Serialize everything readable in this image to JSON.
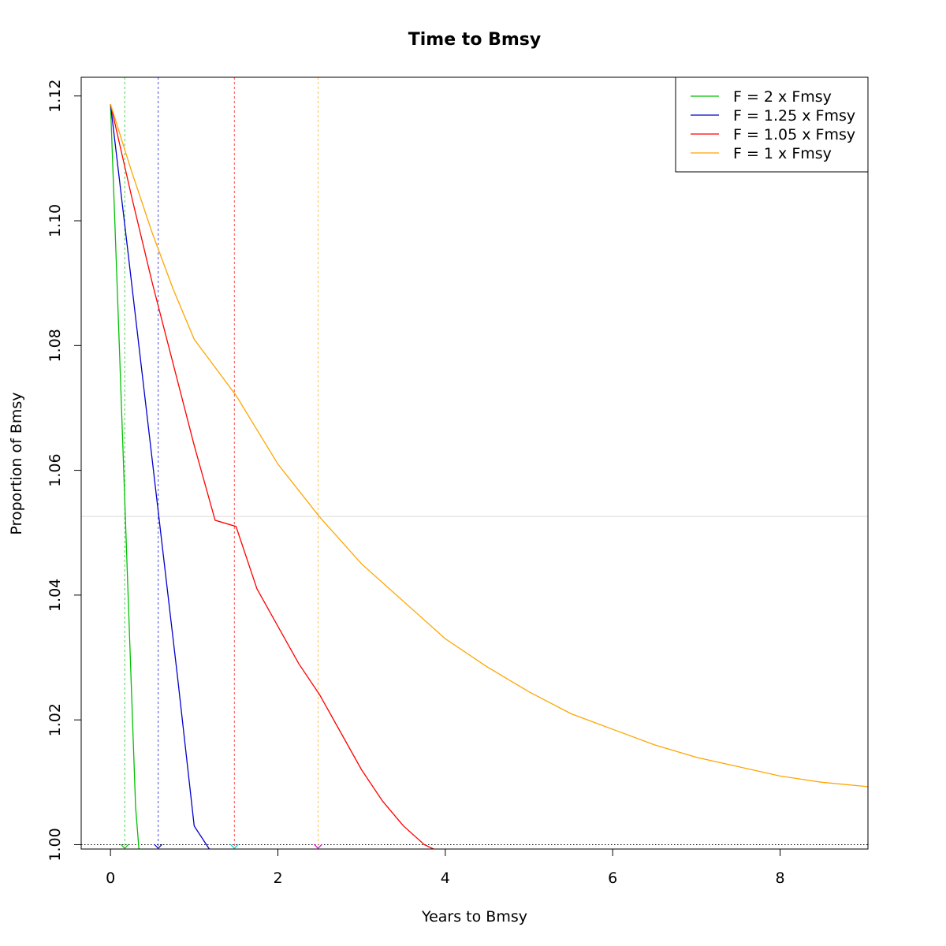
{
  "chart_data": {
    "type": "line",
    "title": "Time to Bmsy",
    "xlabel": "Years to Bmsy",
    "ylabel": "Proportion of Bmsy",
    "xlim": [
      -0.35,
      9.05
    ],
    "ylim": [
      0.9993,
      1.123
    ],
    "x_ticks": [
      0,
      2,
      4,
      6,
      8
    ],
    "y_ticks": [
      1.0,
      1.02,
      1.04,
      1.06,
      1.08,
      1.1,
      1.12
    ],
    "y_tick_labels": [
      "1.00",
      "1.02",
      "1.04",
      "1.06",
      "1.08",
      "1.10",
      "1.12"
    ],
    "grid": false,
    "legend_position": "top-right",
    "series": [
      {
        "name": "F = 2 x Fmsy",
        "color": "#00c000",
        "x": [
          0,
          0.05,
          0.1,
          0.15,
          0.2,
          0.25,
          0.3,
          0.34
        ],
        "y": [
          1.1187,
          1.1005,
          1.082,
          1.063,
          1.044,
          1.025,
          1.006,
          0.9993
        ]
      },
      {
        "name": "F = 1.25 x Fmsy",
        "color": "#0000cc",
        "x": [
          0,
          0.2,
          0.4,
          0.6,
          0.8,
          1.0,
          1.18
        ],
        "y": [
          1.1187,
          1.096,
          1.073,
          1.05,
          1.027,
          1.003,
          0.9993
        ]
      },
      {
        "name": "F = 1.05 x Fmsy",
        "color": "#ff0000",
        "x": [
          0,
          0.25,
          0.5,
          0.75,
          1.0,
          1.25,
          1.5,
          1.75,
          2.0,
          2.25,
          2.5,
          2.75,
          3.0,
          3.25,
          3.5,
          3.75,
          3.86
        ],
        "y": [
          1.1187,
          1.104,
          1.09,
          1.077,
          1.064,
          1.052,
          1.051,
          1.041,
          1.035,
          1.029,
          1.024,
          1.018,
          1.012,
          1.007,
          1.003,
          1.0,
          0.9993
        ]
      },
      {
        "name": "F = 1 x Fmsy",
        "color": "#ffa500",
        "x": [
          0,
          0.25,
          0.5,
          0.75,
          1.0,
          1.5,
          2.0,
          2.5,
          3.0,
          3.5,
          4.0,
          4.5,
          5.0,
          5.5,
          6.0,
          6.5,
          7.0,
          7.5,
          8.0,
          8.5,
          9.05
        ],
        "y": [
          1.1187,
          1.108,
          1.098,
          1.089,
          1.081,
          1.072,
          1.061,
          1.0525,
          1.045,
          1.039,
          1.033,
          1.0285,
          1.0245,
          1.021,
          1.0185,
          1.016,
          1.014,
          1.0125,
          1.011,
          1.01,
          1.0093
        ]
      }
    ],
    "vertical_reference_lines": [
      {
        "x": 0.17,
        "color": "#00c000"
      },
      {
        "x": 0.57,
        "color": "#0000cc"
      },
      {
        "x": 1.48,
        "color": "#ff0000"
      },
      {
        "x": 2.48,
        "color": "#ffa500"
      }
    ],
    "arrow_markers": [
      {
        "x": 0.17,
        "color": "#00c000"
      },
      {
        "x": 0.57,
        "color": "#0000cc"
      },
      {
        "x": 1.48,
        "color": "#00cccc"
      },
      {
        "x": 2.48,
        "color": "#cc00cc"
      }
    ],
    "horizontal_reference_lines": [
      {
        "y": 1.0526,
        "color": "#d9d9d9",
        "style": "solid"
      },
      {
        "y": 1.0,
        "color": "#000000",
        "style": "dotted"
      }
    ]
  }
}
